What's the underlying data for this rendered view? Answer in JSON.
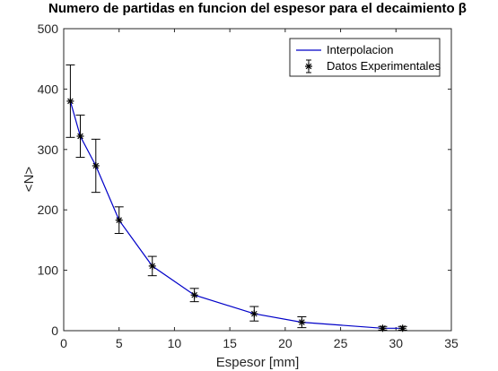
{
  "chart_data": {
    "type": "line",
    "title": "Numero de partidas en funcion del espesor para el decaimiento β",
    "xlabel": "Espesor [mm]",
    "ylabel": "<N>",
    "xlim": [
      0,
      35
    ],
    "ylim": [
      0,
      500
    ],
    "xticks": [
      0,
      5,
      10,
      15,
      20,
      25,
      30,
      35
    ],
    "yticks": [
      0,
      100,
      200,
      300,
      400,
      500
    ],
    "grid": false,
    "legend_position": "top-right",
    "series": [
      {
        "name": "Interpolacion",
        "style": "line",
        "color": "#0000c8",
        "x": [
          0.6,
          1.5,
          2.9,
          5.0,
          8.0,
          11.8,
          17.2,
          21.5,
          28.8,
          30.6
        ],
        "y": [
          380,
          322,
          273,
          183,
          107,
          59,
          28,
          14,
          4,
          4
        ]
      },
      {
        "name": "Datos Experimentales",
        "style": "errorbar",
        "color": "#000000",
        "x": [
          0.6,
          1.5,
          2.9,
          5.0,
          8.0,
          11.8,
          17.2,
          21.5,
          28.8,
          30.6
        ],
        "y": [
          380,
          322,
          273,
          183,
          107,
          59,
          28,
          14,
          4,
          4
        ],
        "yerr": [
          60,
          35,
          44,
          22,
          16,
          11,
          12,
          9,
          3,
          3
        ]
      }
    ]
  }
}
